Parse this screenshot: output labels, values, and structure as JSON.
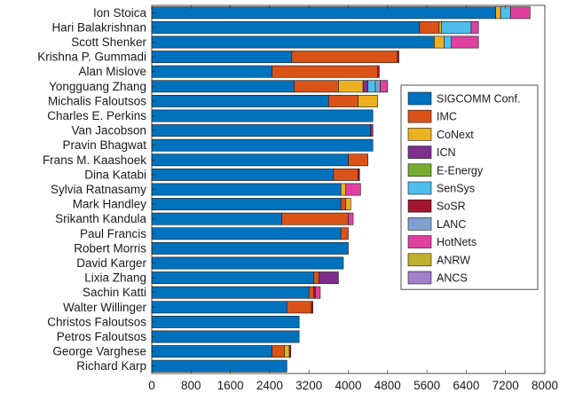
{
  "chart_data": {
    "type": "bar",
    "orientation": "horizontal",
    "stacked": true,
    "title": "",
    "xlabel": "",
    "ylabel": "",
    "xlim": [
      0,
      8000
    ],
    "x_ticks": [
      0,
      800,
      1600,
      2400,
      3200,
      4000,
      4800,
      5600,
      6400,
      7200,
      8000
    ],
    "grid": false,
    "legend_position": "right",
    "categories": [
      "Ion Stoica",
      "Hari Balakrishnan",
      "Scott Shenker",
      "Krishna P. Gummadi",
      "Alan Mislove",
      "Yongguang Zhang",
      "Michalis Faloutsos",
      "Charles E. Perkins",
      "Van Jacobson",
      "Pravin Bhagwat",
      "Frans M. Kaashoek",
      "Dina Katabi",
      "Sylvia Ratnasamy",
      "Mark Handley",
      "Srikanth Kandula",
      "Paul Francis",
      "Robert Morris",
      "David Karger",
      "Lixia Zhang",
      "Sachin Katti",
      "Walter Willinger",
      "Christos Faloutsos",
      "Petros Faloutsos",
      "George Varghese",
      "Richard Karp"
    ],
    "series": [
      {
        "name": "SIGCOMM Conf.",
        "color": "#0072BD",
        "values": [
          7000,
          5450,
          5750,
          2850,
          2450,
          2900,
          3600,
          4500,
          4450,
          4500,
          4000,
          3700,
          3850,
          3850,
          2650,
          3850,
          4000,
          3900,
          3300,
          3200,
          2750,
          3000,
          3000,
          2450,
          2750
        ]
      },
      {
        "name": "IMC",
        "color": "#D95319",
        "values": [
          0,
          400,
          0,
          2150,
          2150,
          900,
          600,
          0,
          0,
          0,
          400,
          500,
          0,
          100,
          1350,
          150,
          0,
          0,
          100,
          100,
          500,
          0,
          0,
          250,
          0
        ]
      },
      {
        "name": "CoNext",
        "color": "#EDB120",
        "values": [
          100,
          50,
          200,
          0,
          0,
          500,
          400,
          0,
          0,
          0,
          0,
          0,
          100,
          100,
          0,
          0,
          0,
          0,
          0,
          0,
          0,
          0,
          0,
          100,
          0
        ]
      },
      {
        "name": "ICN",
        "color": "#7E2F8E",
        "values": [
          0,
          0,
          0,
          0,
          0,
          100,
          0,
          0,
          50,
          0,
          0,
          0,
          0,
          0,
          0,
          0,
          0,
          0,
          400,
          0,
          0,
          0,
          0,
          0,
          0
        ]
      },
      {
        "name": "E-Energy",
        "color": "#77AC30",
        "values": [
          0,
          0,
          0,
          0,
          0,
          0,
          0,
          0,
          0,
          0,
          0,
          0,
          0,
          0,
          0,
          0,
          0,
          0,
          0,
          0,
          0,
          0,
          0,
          0,
          0
        ]
      },
      {
        "name": "SenSys",
        "color": "#4DBEEE",
        "values": [
          200,
          600,
          150,
          0,
          0,
          150,
          0,
          0,
          0,
          0,
          0,
          0,
          0,
          0,
          0,
          0,
          0,
          0,
          0,
          0,
          0,
          0,
          0,
          0,
          0
        ]
      },
      {
        "name": "SoSR",
        "color": "#A2142F",
        "values": [
          0,
          0,
          0,
          30,
          30,
          0,
          0,
          0,
          0,
          0,
          0,
          30,
          0,
          0,
          0,
          0,
          0,
          0,
          0,
          30,
          30,
          0,
          0,
          30,
          0
        ]
      },
      {
        "name": "LANC",
        "color": "#80A0D0",
        "values": [
          0,
          0,
          0,
          0,
          0,
          100,
          0,
          0,
          0,
          0,
          0,
          0,
          0,
          0,
          0,
          0,
          0,
          0,
          0,
          0,
          0,
          0,
          0,
          0,
          0
        ]
      },
      {
        "name": "HotNets",
        "color": "#E040A0",
        "values": [
          400,
          150,
          550,
          0,
          0,
          150,
          0,
          0,
          0,
          0,
          0,
          0,
          300,
          0,
          100,
          0,
          0,
          0,
          0,
          100,
          0,
          0,
          0,
          0,
          0
        ]
      },
      {
        "name": "ANRW",
        "color": "#C0B030",
        "values": [
          0,
          0,
          0,
          0,
          0,
          0,
          0,
          0,
          0,
          0,
          0,
          0,
          0,
          0,
          0,
          0,
          0,
          0,
          0,
          0,
          0,
          0,
          0,
          0,
          0
        ]
      },
      {
        "name": "ANCS",
        "color": "#A080C8",
        "values": [
          0,
          0,
          0,
          0,
          0,
          0,
          0,
          0,
          0,
          0,
          0,
          0,
          0,
          0,
          0,
          0,
          0,
          0,
          0,
          0,
          0,
          0,
          0,
          0,
          0
        ]
      }
    ]
  }
}
